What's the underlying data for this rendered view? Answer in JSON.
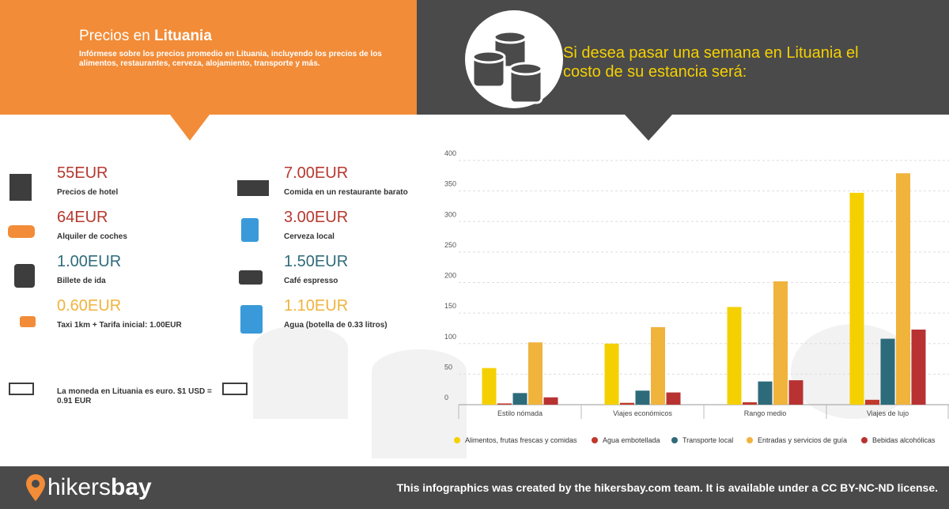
{
  "header": {
    "title_prefix": "Precios en",
    "title_country": "Lituania",
    "description": "Infórmese sobre los precios promedio en Lituania, incluyendo los precios de los alimentos, restaurantes, cerveza, alojamiento, transporte y más.",
    "headline": "Si desea pasar una semana en Lituania el costo de su estancia será:"
  },
  "prices": [
    {
      "value": "55EUR",
      "label": "Precios de hotel"
    },
    {
      "value": "64EUR",
      "label": "Alquiler de coches"
    },
    {
      "value": "1.00EUR",
      "label": "Billete de ida"
    },
    {
      "value": "0.60EUR",
      "label": "Taxi 1km + Tarifa inicial: 1.00EUR"
    },
    {
      "value": "7.00EUR",
      "label": "Comida en un restaurante barato"
    },
    {
      "value": "3.00EUR",
      "label": "Cerveza local"
    },
    {
      "value": "1.50EUR",
      "label": "Café espresso"
    },
    {
      "value": "1.10EUR",
      "label": "Agua (botella de 0.33 litros)"
    }
  ],
  "currency_note": "La moneda en Lituania es euro. $1 USD = 0.91 EUR",
  "chart_data": {
    "type": "bar",
    "categories": [
      "Estilo nómada",
      "Viajes económicos",
      "Rango medio",
      "Viajes de lujo"
    ],
    "series": [
      {
        "name": "Alimentos, frutas frescas y comidas",
        "color": "#f5d000",
        "values": [
          60,
          100,
          160,
          347
        ]
      },
      {
        "name": "Agua embotellada",
        "color": "#c0392b",
        "values": [
          2,
          3,
          4,
          8
        ]
      },
      {
        "name": "Transporte local",
        "color": "#2e6b7a",
        "values": [
          19,
          23,
          38,
          108
        ]
      },
      {
        "name": "Entradas y servicios de guía",
        "color": "#f0b33c",
        "values": [
          102,
          127,
          202,
          379
        ]
      },
      {
        "name": "Bebidas alcohólicas",
        "color": "#b83232",
        "values": [
          12,
          20,
          40,
          123
        ]
      }
    ],
    "ylim": [
      0,
      400
    ],
    "yticks": [
      0,
      50,
      100,
      150,
      200,
      250,
      300,
      350,
      400
    ],
    "grid": true
  },
  "footer": {
    "logo_light": "hikers",
    "logo_bold": "bay",
    "license": "This infographics was created by the hikersbay.com team. It is available under a CC BY-NC-ND license."
  }
}
